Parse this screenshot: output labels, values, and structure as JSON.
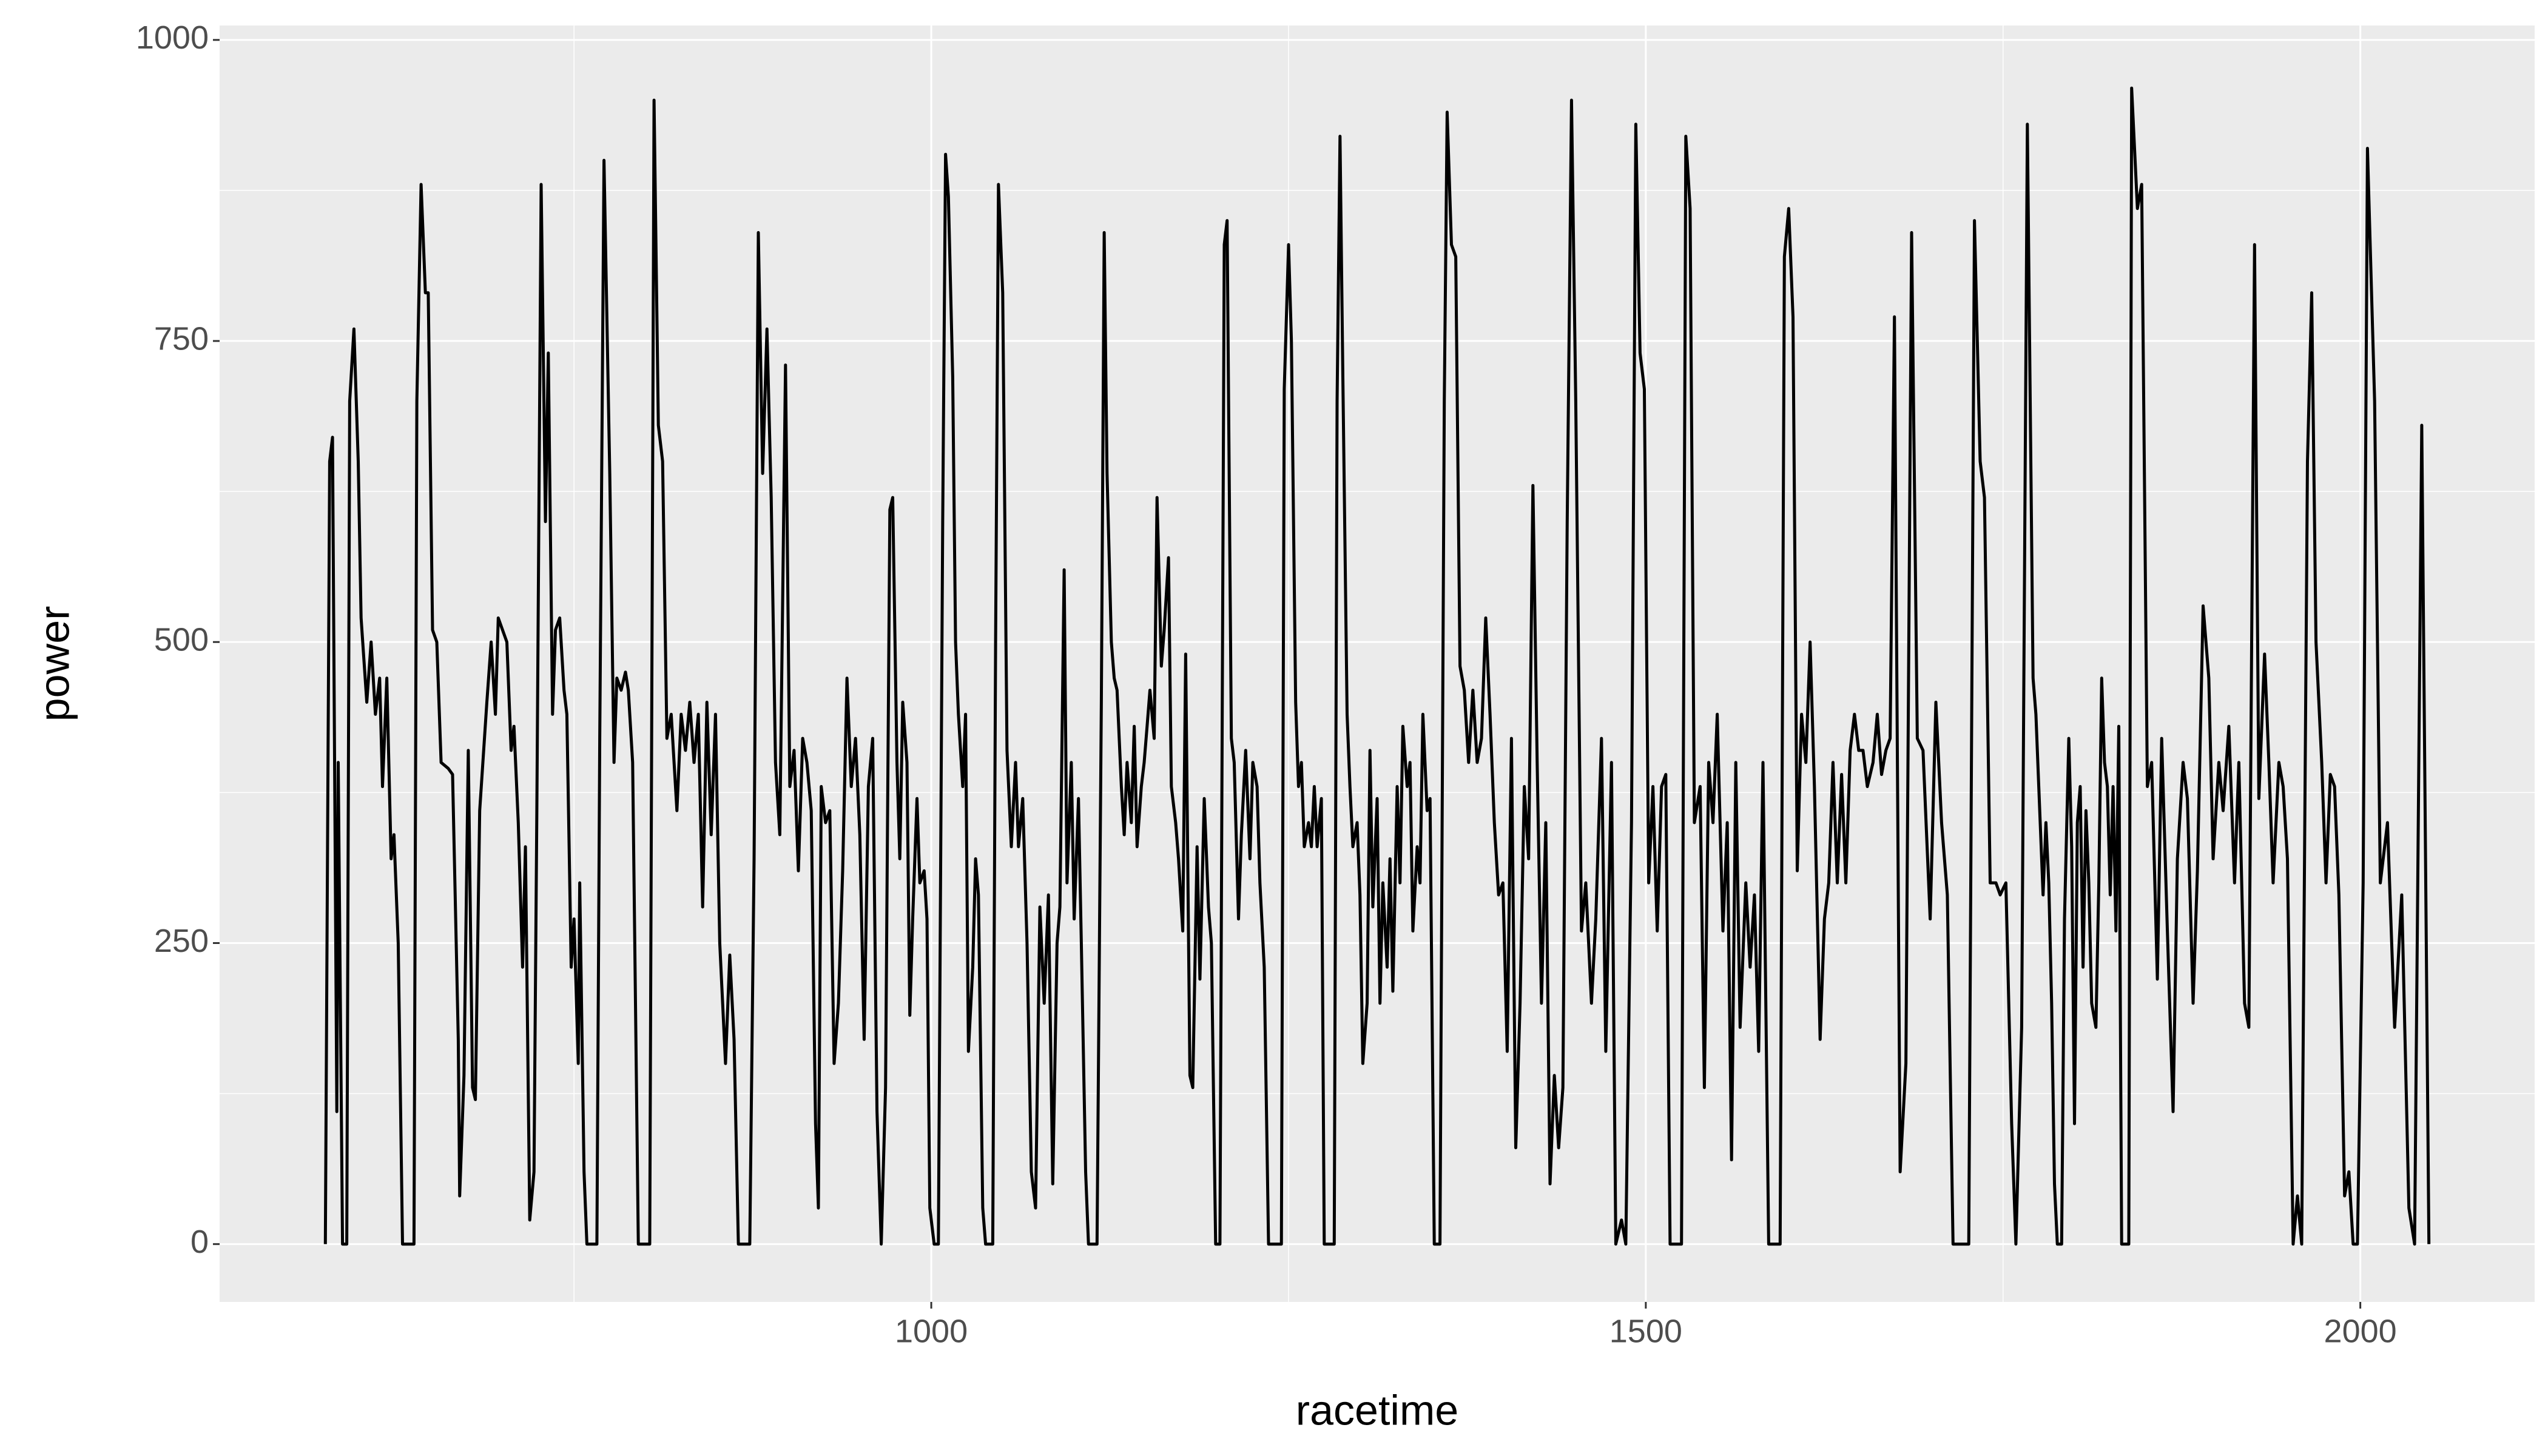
{
  "chart_data": {
    "type": "line",
    "xlabel": "racetime",
    "ylabel": "power",
    "xlim": [
      502,
      2122
    ],
    "ylim": [
      -48,
      1012
    ],
    "xticks": [
      1000,
      1500,
      2000
    ],
    "yticks": [
      0,
      250,
      500,
      750,
      1000
    ],
    "grid": true,
    "color": "#000000",
    "x": [
      576,
      579,
      581,
      584,
      585,
      588,
      591,
      593,
      596,
      599,
      601,
      605,
      608,
      611,
      614,
      616,
      619,
      622,
      624,
      627,
      630,
      638,
      640,
      643,
      646,
      648,
      651,
      654,
      657,
      662,
      665,
      669,
      670,
      673,
      676,
      679,
      681,
      684,
      689,
      692,
      695,
      697,
      703,
      706,
      708,
      711,
      714,
      716,
      719,
      722,
      724,
      727,
      730,
      732,
      735,
      737,
      740,
      743,
      745,
      748,
      750,
      753,
      754,
      757,
      759,
      766,
      768,
      771,
      775,
      778,
      780,
      783,
      786,
      788,
      791,
      795,
      803,
      806,
      809,
      812,
      815,
      818,
      822,
      825,
      828,
      831,
      834,
      837,
      840,
      843,
      846,
      849,
      852,
      856,
      859,
      862,
      865,
      873,
      876,
      879,
      882,
      885,
      888,
      891,
      894,
      898,
      901,
      904,
      907,
      910,
      913,
      916,
      919,
      921,
      923,
      926,
      929,
      932,
      935,
      938,
      941,
      944,
      947,
      950,
      953,
      956,
      959,
      962,
      965,
      968,
      971,
      973,
      976,
      978,
      980,
      983,
      985,
      987,
      990,
      992,
      995,
      997,
      999,
      1002,
      1005,
      1008,
      1010,
      1012,
      1015,
      1017,
      1019,
      1022,
      1024,
      1026,
      1029,
      1031,
      1033,
      1036,
      1038,
      1043,
      1045,
      1047,
      1050,
      1053,
      1056,
      1059,
      1061,
      1064,
      1067,
      1070,
      1073,
      1076,
      1079,
      1082,
      1085,
      1088,
      1090,
      1093,
      1095,
      1098,
      1100,
      1103,
      1105,
      1108,
      1110,
      1116,
      1119,
      1121,
      1123,
      1126,
      1128,
      1130,
      1133,
      1135,
      1137,
      1140,
      1142,
      1144,
      1147,
      1149,
      1151,
      1153,
      1156,
      1158,
      1161,
      1163,
      1166,
      1168,
      1171,
      1173,
      1176,
      1178,
      1181,
      1183,
      1186,
      1188,
      1191,
      1194,
      1196,
      1199,
      1202,
      1205,
      1207,
      1210,
      1212,
      1215,
      1217,
      1220,
      1223,
      1225,
      1228,
      1230,
      1233,
      1236,
      1245,
      1247,
      1250,
      1252,
      1255,
      1257,
      1259,
      1261,
      1264,
      1266,
      1268,
      1270,
      1273,
      1275,
      1282,
      1284,
      1286,
      1288,
      1291,
      1293,
      1295,
      1298,
      1300,
      1302,
      1305,
      1307,
      1309,
      1312,
      1314,
      1316,
      1319,
      1321,
      1323,
      1326,
      1328,
      1330,
      1333,
      1335,
      1337,
      1340,
      1342,
      1344,
      1347,
      1349,
      1352,
      1356,
      1359,
      1361,
      1364,
      1367,
      1370,
      1373,
      1376,
      1379,
      1382,
      1385,
      1388,
      1391,
      1394,
      1397,
      1400,
      1403,
      1406,
      1409,
      1412,
      1415,
      1418,
      1421,
      1424,
      1427,
      1430,
      1433,
      1436,
      1439,
      1442,
      1445,
      1448,
      1451,
      1455,
      1458,
      1462,
      1465,
      1469,
      1472,
      1476,
      1479,
      1483,
      1486,
      1490,
      1493,
      1496,
      1499,
      1502,
      1505,
      1508,
      1511,
      1514,
      1517,
      1525,
      1528,
      1531,
      1534,
      1538,
      1541,
      1544,
      1547,
      1550,
      1554,
      1557,
      1560,
      1563,
      1566,
      1570,
      1573,
      1576,
      1579,
      1582,
      1586,
      1594,
      1597,
      1600,
      1603,
      1606,
      1609,
      1612,
      1615,
      1618,
      1622,
      1625,
      1628,
      1631,
      1634,
      1637,
      1640,
      1643,
      1646,
      1649,
      1652,
      1655,
      1659,
      1662,
      1665,
      1668,
      1671,
      1674,
      1678,
      1682,
      1686,
      1690,
      1694,
      1699,
      1703,
      1707,
      1711,
      1715,
      1726,
      1730,
      1734,
      1737,
      1741,
      1745,
      1748,
      1752,
      1756,
      1759,
      1763,
      1767,
      1769,
      1771,
      1773,
      1775,
      1778,
      1780,
      1782,
      1784,
      1786,
      1788,
      1791,
      1793,
      1796,
      1798,
      1800,
      1802,
      1804,
      1806,
      1808,
      1810,
      1812,
      1815,
      1817,
      1819,
      1821,
      1823,
      1825,
      1827,
      1829,
      1831,
      1833,
      1838,
      1840,
      1844,
      1847,
      1851,
      1854,
      1858,
      1861,
      1865,
      1869,
      1872,
      1876,
      1879,
      1883,
      1886,
      1890,
      1894,
      1897,
      1901,
      1904,
      1908,
      1912,
      1915,
      1919,
      1922,
      1926,
      1929,
      1933,
      1936,
      1939,
      1943,
      1946,
      1949,
      1953,
      1956,
      1959,
      1963,
      1966,
      1969,
      1973,
      1976,
      1979,
      1982,
      1985,
      1989,
      1992,
      1995,
      1998,
      2002,
      2005,
      2010,
      2014,
      2019,
      2024,
      2029,
      2034,
      2038,
      2043,
      2048
    ],
    "values": [
      0,
      650,
      670,
      110,
      400,
      0,
      0,
      700,
      760,
      650,
      520,
      450,
      500,
      440,
      470,
      380,
      470,
      320,
      340,
      250,
      0,
      0,
      700,
      880,
      790,
      790,
      510,
      500,
      400,
      395,
      390,
      170,
      40,
      140,
      410,
      130,
      120,
      360,
      450,
      500,
      440,
      520,
      500,
      410,
      430,
      350,
      230,
      330,
      20,
      60,
      360,
      880,
      600,
      740,
      440,
      510,
      520,
      460,
      440,
      230,
      270,
      150,
      300,
      60,
      0,
      0,
      420,
      900,
      640,
      400,
      470,
      460,
      475,
      460,
      400,
      0,
      0,
      950,
      680,
      650,
      420,
      440,
      360,
      440,
      410,
      450,
      400,
      440,
      280,
      450,
      340,
      440,
      250,
      150,
      240,
      170,
      0,
      0,
      320,
      840,
      640,
      760,
      620,
      400,
      340,
      730,
      380,
      410,
      310,
      420,
      400,
      360,
      100,
      30,
      380,
      350,
      360,
      150,
      200,
      310,
      470,
      380,
      420,
      340,
      170,
      380,
      420,
      110,
      0,
      130,
      610,
      620,
      400,
      320,
      450,
      400,
      190,
      270,
      370,
      300,
      310,
      270,
      30,
      0,
      0,
      600,
      905,
      870,
      720,
      500,
      440,
      380,
      440,
      160,
      230,
      320,
      290,
      30,
      0,
      0,
      500,
      880,
      790,
      410,
      330,
      400,
      330,
      370,
      250,
      60,
      30,
      280,
      200,
      290,
      50,
      250,
      280,
      560,
      300,
      400,
      270,
      370,
      250,
      60,
      0,
      0,
      450,
      840,
      640,
      500,
      470,
      460,
      380,
      340,
      400,
      350,
      430,
      330,
      380,
      400,
      430,
      460,
      420,
      620,
      480,
      510,
      570,
      380,
      350,
      320,
      260,
      490,
      140,
      130,
      330,
      220,
      370,
      280,
      250,
      0,
      0,
      830,
      850,
      420,
      400,
      270,
      340,
      410,
      320,
      400,
      380,
      300,
      230,
      0,
      0,
      710,
      830,
      750,
      450,
      380,
      400,
      330,
      350,
      330,
      380,
      330,
      370,
      0,
      0,
      700,
      920,
      720,
      440,
      380,
      330,
      350,
      290,
      150,
      200,
      410,
      280,
      370,
      200,
      300,
      230,
      320,
      210,
      380,
      300,
      430,
      380,
      400,
      260,
      330,
      300,
      440,
      360,
      370,
      0,
      0,
      700,
      940,
      830,
      820,
      480,
      460,
      400,
      460,
      400,
      420,
      520,
      440,
      350,
      290,
      300,
      160,
      420,
      80,
      200,
      380,
      320,
      630,
      400,
      200,
      350,
      50,
      140,
      80,
      130,
      600,
      950,
      700,
      260,
      300,
      200,
      270,
      420,
      160,
      400,
      0,
      20,
      0,
      350,
      930,
      740,
      710,
      300,
      380,
      260,
      380,
      390,
      0,
      0,
      920,
      860,
      350,
      380,
      130,
      400,
      350,
      440,
      260,
      350,
      70,
      400,
      180,
      300,
      230,
      290,
      160,
      400,
      0,
      0,
      820,
      860,
      770,
      310,
      440,
      400,
      500,
      380,
      170,
      270,
      300,
      400,
      300,
      390,
      300,
      410,
      440,
      410,
      410,
      380,
      400,
      440,
      390,
      410,
      420,
      770,
      60,
      150,
      840,
      420,
      410,
      270,
      450,
      350,
      290,
      0,
      0,
      850,
      650,
      620,
      300,
      300,
      290,
      300,
      100,
      0,
      180,
      930,
      700,
      470,
      440,
      380,
      290,
      350,
      300,
      200,
      50,
      0,
      0,
      270,
      420,
      330,
      100,
      350,
      380,
      230,
      360,
      300,
      200,
      180,
      300,
      470,
      400,
      380,
      290,
      380,
      260,
      430,
      0,
      0,
      960,
      860,
      880,
      380,
      400,
      220,
      420,
      260,
      110,
      320,
      400,
      370,
      200,
      310,
      530,
      470,
      320,
      400,
      360,
      430,
      300,
      400,
      200,
      180,
      830,
      370,
      490,
      400,
      300,
      400,
      380,
      320,
      0,
      40,
      0,
      650,
      790,
      500,
      400,
      300,
      390,
      380,
      290,
      40,
      60,
      0,
      0,
      300,
      910,
      700,
      300,
      350,
      180,
      290,
      30,
      0,
      680,
      0
    ]
  }
}
